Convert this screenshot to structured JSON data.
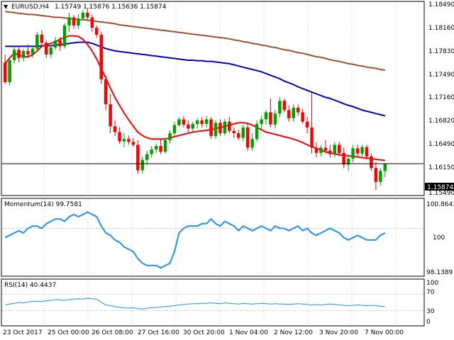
{
  "header": {
    "symbol": "EURUSD,H4",
    "ohlc": "1.15749 1.15876 1.15636 1.15874"
  },
  "colors": {
    "bull": "#00a000",
    "bear": "#ff0000",
    "sma_fast": "#ff0000",
    "sma_mid": "#0000cc",
    "sma_slow": "#a0522d",
    "osc": "#1e90ff",
    "grid": "#c0c0c0",
    "frame": "#000000"
  },
  "price_axis": {
    "ticks": [
      "1.18490",
      "1.18160",
      "1.17830",
      "1.17490",
      "1.17160",
      "1.16820",
      "1.16490",
      "1.16150",
      "1.15490"
    ],
    "current": "1.15874"
  },
  "x_axis": {
    "labels": [
      "23 Oct 2017",
      "25 Oct 00:00",
      "26 Oct 08:00",
      "27 Oct 16:00",
      "30 Oct 20:00",
      "1 Nov 04:00",
      "2 Nov 12:00",
      "3 Nov 20:00",
      "7 Nov 00:00"
    ]
  },
  "momentum": {
    "label": "Momentum(14) 99.7581",
    "ticks": [
      "100.8643",
      "100",
      "98.1389"
    ]
  },
  "rsi": {
    "label": "RSI(14) 40.4437",
    "ticks": [
      "100",
      "70",
      "30",
      "0"
    ]
  },
  "chart_data": [
    {
      "type": "candlestick",
      "title": "EURUSD,H4",
      "ylim": [
        1.1535,
        1.1865
      ],
      "x": [
        "23 Oct 2017",
        "25 Oct 00:00",
        "26 Oct 08:00",
        "27 Oct 16:00",
        "30 Oct 20:00",
        "1 Nov 04:00",
        "2 Nov 12:00",
        "3 Nov 20:00",
        "7 Nov 00:00"
      ],
      "candles": [
        [
          1.1762,
          1.1776,
          1.1725,
          1.1728
        ],
        [
          1.1728,
          1.177,
          1.1722,
          1.1766
        ],
        [
          1.1766,
          1.179,
          1.176,
          1.1784
        ],
        [
          1.1784,
          1.179,
          1.1762,
          1.177
        ],
        [
          1.177,
          1.1785,
          1.1764,
          1.1782
        ],
        [
          1.1782,
          1.1793,
          1.177,
          1.1776
        ],
        [
          1.1776,
          1.179,
          1.177,
          1.1786
        ],
        [
          1.1786,
          1.1815,
          1.178,
          1.181
        ],
        [
          1.181,
          1.1818,
          1.1792,
          1.1796
        ],
        [
          1.1796,
          1.18,
          1.177,
          1.1776
        ],
        [
          1.1776,
          1.1792,
          1.177,
          1.1788
        ],
        [
          1.1788,
          1.1806,
          1.1784,
          1.18
        ],
        [
          1.18,
          1.1806,
          1.1782,
          1.179
        ],
        [
          1.179,
          1.183,
          1.1786,
          1.1826
        ],
        [
          1.1826,
          1.1848,
          1.1815,
          1.184
        ],
        [
          1.184,
          1.1844,
          1.182,
          1.1826
        ],
        [
          1.1826,
          1.1845,
          1.182,
          1.1838
        ],
        [
          1.1838,
          1.1852,
          1.1835,
          1.1848
        ],
        [
          1.1848,
          1.1856,
          1.1835,
          1.184
        ],
        [
          1.184,
          1.1845,
          1.1815,
          1.1822
        ],
        [
          1.1822,
          1.1826,
          1.1805,
          1.181
        ],
        [
          1.181,
          1.1815,
          1.1725,
          1.1733
        ],
        [
          1.1733,
          1.174,
          1.168,
          1.169
        ],
        [
          1.169,
          1.1708,
          1.164,
          1.1652
        ],
        [
          1.1652,
          1.1662,
          1.1635,
          1.1642
        ],
        [
          1.1642,
          1.165,
          1.1622,
          1.1626
        ],
        [
          1.1626,
          1.164,
          1.1616,
          1.163
        ],
        [
          1.163,
          1.1636,
          1.162,
          1.1625
        ],
        [
          1.1625,
          1.1632,
          1.1617,
          1.162
        ],
        [
          1.162,
          1.1628,
          1.157,
          1.1576
        ],
        [
          1.1576,
          1.16,
          1.157,
          1.1594
        ],
        [
          1.1594,
          1.161,
          1.1585,
          1.1604
        ],
        [
          1.1604,
          1.1618,
          1.1598,
          1.1612
        ],
        [
          1.1612,
          1.1622,
          1.1606,
          1.1618
        ],
        [
          1.1618,
          1.163,
          1.1604,
          1.1608
        ],
        [
          1.1608,
          1.1632,
          1.1605,
          1.1628
        ],
        [
          1.1628,
          1.1645,
          1.1622,
          1.164
        ],
        [
          1.164,
          1.166,
          1.1635,
          1.1654
        ],
        [
          1.1654,
          1.1668,
          1.1652,
          1.1664
        ],
        [
          1.1664,
          1.167,
          1.165,
          1.1655
        ],
        [
          1.1655,
          1.1662,
          1.1642,
          1.1648
        ],
        [
          1.1648,
          1.166,
          1.164,
          1.1656
        ],
        [
          1.1656,
          1.1666,
          1.1648,
          1.1662
        ],
        [
          1.1662,
          1.1668,
          1.165,
          1.1656
        ],
        [
          1.1656,
          1.167,
          1.165,
          1.1664
        ],
        [
          1.1664,
          1.1668,
          1.163,
          1.1635
        ],
        [
          1.1635,
          1.1662,
          1.163,
          1.1658
        ],
        [
          1.1658,
          1.1664,
          1.1635,
          1.164
        ],
        [
          1.164,
          1.1665,
          1.1636,
          1.166
        ],
        [
          1.166,
          1.1668,
          1.164,
          1.1644
        ],
        [
          1.1644,
          1.165,
          1.1632,
          1.164
        ],
        [
          1.164,
          1.1646,
          1.1628,
          1.1632
        ],
        [
          1.1632,
          1.1655,
          1.1626,
          1.165
        ],
        [
          1.165,
          1.1656,
          1.161,
          1.1615
        ],
        [
          1.1615,
          1.164,
          1.161,
          1.163
        ],
        [
          1.163,
          1.1662,
          1.1625,
          1.1656
        ],
        [
          1.1656,
          1.167,
          1.1645,
          1.1664
        ],
        [
          1.1664,
          1.168,
          1.1655,
          1.1676
        ],
        [
          1.1676,
          1.17,
          1.165,
          1.1655
        ],
        [
          1.1655,
          1.168,
          1.1648,
          1.1674
        ],
        [
          1.1674,
          1.1702,
          1.1668,
          1.1696
        ],
        [
          1.1696,
          1.17,
          1.1676,
          1.168
        ],
        [
          1.168,
          1.1688,
          1.166,
          1.1666
        ],
        [
          1.1666,
          1.169,
          1.166,
          1.1684
        ],
        [
          1.1684,
          1.169,
          1.167,
          1.1676
        ],
        [
          1.1676,
          1.1682,
          1.1656,
          1.166
        ],
        [
          1.166,
          1.1668,
          1.164,
          1.165
        ],
        [
          1.165,
          1.171,
          1.1605,
          1.1615
        ],
        [
          1.1615,
          1.1625,
          1.1598,
          1.1606
        ],
        [
          1.1606,
          1.162,
          1.16,
          1.1615
        ],
        [
          1.1615,
          1.1628,
          1.1605,
          1.161
        ],
        [
          1.161,
          1.162,
          1.1598,
          1.1604
        ],
        [
          1.1604,
          1.1625,
          1.1598,
          1.162
        ],
        [
          1.162,
          1.1625,
          1.16,
          1.1606
        ],
        [
          1.1606,
          1.1615,
          1.158,
          1.1586
        ],
        [
          1.1586,
          1.16,
          1.1575,
          1.1596
        ],
        [
          1.1596,
          1.162,
          1.159,
          1.1614
        ],
        [
          1.1614,
          1.162,
          1.16,
          1.1605
        ],
        [
          1.1605,
          1.162,
          1.16,
          1.1616
        ],
        [
          1.1616,
          1.162,
          1.1595,
          1.16
        ],
        [
          1.16,
          1.1605,
          1.1575,
          1.158
        ],
        [
          1.158,
          1.159,
          1.1542,
          1.1556
        ],
        [
          1.1556,
          1.158,
          1.155,
          1.1575
        ],
        [
          1.1575,
          1.1588,
          1.1564,
          1.1587
        ]
      ],
      "sma_fast": [
        1.176,
        1.177,
        1.1778,
        1.1775,
        1.1772,
        1.1772,
        1.1775,
        1.1782,
        1.179,
        1.1793,
        1.1795,
        1.1798,
        1.1802,
        1.1805,
        1.1808,
        1.1808,
        1.1807,
        1.1802,
        1.1793,
        1.1782,
        1.1768,
        1.1752,
        1.1735,
        1.1718,
        1.1702,
        1.1688,
        1.1675,
        1.1663,
        1.1652,
        1.1642,
        1.1636,
        1.1632,
        1.163,
        1.163,
        1.163,
        1.163,
        1.1632,
        1.1634,
        1.1636,
        1.1638,
        1.164,
        1.1642,
        1.1643,
        1.1644,
        1.1645,
        1.1646,
        1.1648,
        1.165,
        1.1652,
        1.1654,
        1.1656,
        1.1658,
        1.1658,
        1.1657,
        1.1654,
        1.165,
        1.1646,
        1.1642,
        1.164,
        1.1638,
        1.1636,
        1.1634,
        1.1632,
        1.163,
        1.1627,
        1.1624,
        1.162,
        1.1617,
        1.1614,
        1.1611,
        1.1608,
        1.1606,
        1.1604,
        1.1603,
        1.1602,
        1.1601,
        1.16,
        1.1599,
        1.1598,
        1.1597,
        1.1596,
        1.1595,
        1.1594,
        1.1593
      ],
      "sma_mid": [
        1.179,
        1.179,
        1.179,
        1.179,
        1.179,
        1.179,
        1.179,
        1.179,
        1.1791,
        1.1791,
        1.1791,
        1.1792,
        1.1793,
        1.1794,
        1.1795,
        1.1796,
        1.1797,
        1.1797,
        1.1797,
        1.1795,
        1.1792,
        1.1789,
        1.1786,
        1.1784,
        1.1782,
        1.1781,
        1.178,
        1.1779,
        1.1778,
        1.1777,
        1.1776,
        1.1775,
        1.1774,
        1.1773,
        1.1772,
        1.1771,
        1.177,
        1.1769,
        1.1768,
        1.1767,
        1.1766,
        1.1766,
        1.1765,
        1.1765,
        1.1764,
        1.1764,
        1.1763,
        1.1762,
        1.1761,
        1.176,
        1.1758,
        1.1756,
        1.1754,
        1.1752,
        1.175,
        1.1748,
        1.1746,
        1.1743,
        1.174,
        1.1737,
        1.1734,
        1.173,
        1.1727,
        1.1724,
        1.172,
        1.1717,
        1.1714,
        1.1711,
        1.1708,
        1.1705,
        1.1702,
        1.17,
        1.1697,
        1.1694,
        1.1691,
        1.1688,
        1.1686,
        1.1683,
        1.168,
        1.1678,
        1.1676,
        1.1674,
        1.1672,
        1.167
      ],
      "sma_slow": [
        1.185,
        1.1849,
        1.1848,
        1.1847,
        1.1846,
        1.1845,
        1.1845,
        1.1844,
        1.1843,
        1.1842,
        1.1841,
        1.184,
        1.184,
        1.1839,
        1.1838,
        1.1837,
        1.1836,
        1.1836,
        1.1835,
        1.1834,
        1.1833,
        1.1832,
        1.1831,
        1.183,
        1.1829,
        1.1827,
        1.1826,
        1.1825,
        1.1824,
        1.1823,
        1.1822,
        1.1821,
        1.182,
        1.1819,
        1.1818,
        1.1817,
        1.1816,
        1.1815,
        1.1814,
        1.1813,
        1.1812,
        1.1811,
        1.181,
        1.1809,
        1.1808,
        1.1807,
        1.1806,
        1.1805,
        1.1804,
        1.1803,
        1.1801,
        1.18,
        1.1798,
        1.1797,
        1.1795,
        1.1794,
        1.1792,
        1.1791,
        1.1789,
        1.1788,
        1.1786,
        1.1784,
        1.1783,
        1.1781,
        1.1779,
        1.1778,
        1.1776,
        1.1774,
        1.1772,
        1.1771,
        1.1769,
        1.1767,
        1.1765,
        1.1764,
        1.1762,
        1.176,
        1.1759,
        1.1757,
        1.1756,
        1.1754,
        1.1753,
        1.1752,
        1.175,
        1.1749
      ]
    },
    {
      "type": "line",
      "title": "Momentum(14) 99.7581",
      "ylim": [
        98.0,
        101.2
      ],
      "values": [
        99.6,
        99.7,
        99.8,
        99.9,
        99.8,
        100.0,
        100.1,
        100.1,
        100.0,
        100.2,
        100.3,
        100.4,
        100.4,
        100.3,
        100.5,
        100.6,
        100.5,
        100.6,
        100.7,
        100.6,
        100.5,
        100.1,
        99.8,
        99.7,
        99.5,
        99.4,
        99.2,
        99.1,
        99.0,
        98.7,
        98.5,
        98.4,
        98.4,
        98.4,
        98.3,
        98.4,
        98.5,
        99.0,
        99.8,
        100.0,
        100.1,
        100.1,
        100.1,
        100.2,
        100.2,
        100.4,
        100.2,
        100.1,
        100.3,
        100.2,
        100.1,
        99.9,
        100.1,
        100.0,
        99.9,
        100.0,
        100.1,
        100.0,
        99.9,
        100.1,
        100.0,
        100.0,
        99.9,
        100.0,
        100.1,
        99.9,
        100.0,
        99.8,
        99.7,
        99.8,
        99.9,
        100.0,
        99.9,
        99.8,
        99.6,
        99.5,
        99.6,
        99.7,
        99.6,
        99.5,
        99.5,
        99.5,
        99.7,
        99.8
      ]
    },
    {
      "type": "line",
      "title": "RSI(14) 40.4437",
      "ylim": [
        0,
        100
      ],
      "values": [
        44,
        46,
        48,
        50,
        49,
        51,
        52,
        53,
        52,
        54,
        55,
        57,
        56,
        55,
        57,
        58,
        59,
        58,
        60,
        59,
        58,
        50,
        44,
        42,
        40,
        38,
        37,
        36,
        37,
        35,
        34,
        36,
        37,
        38,
        39,
        40,
        41,
        42,
        44,
        45,
        46,
        47,
        47,
        48,
        48,
        49,
        48,
        47,
        49,
        48,
        47,
        46,
        48,
        47,
        46,
        47,
        48,
        47,
        46,
        47,
        46,
        46,
        45,
        46,
        47,
        46,
        45,
        44,
        45,
        44,
        45,
        46,
        45,
        44,
        43,
        42,
        43,
        44,
        43,
        42,
        43,
        42,
        41,
        40
      ]
    }
  ]
}
